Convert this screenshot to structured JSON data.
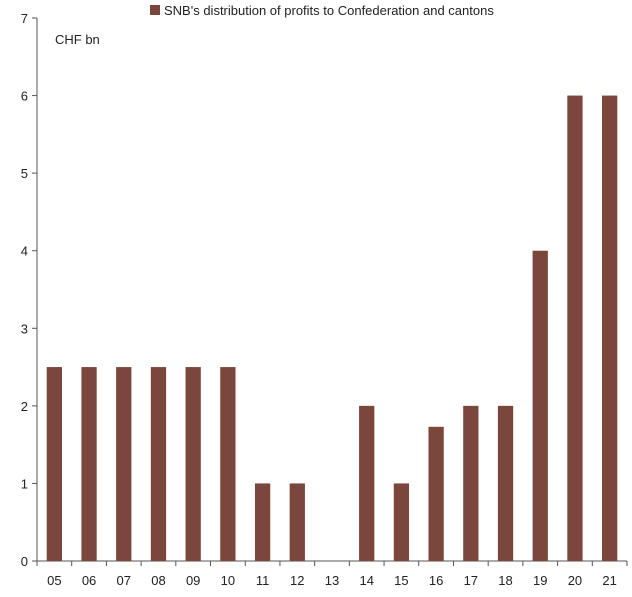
{
  "chart_data": {
    "type": "bar",
    "legend": {
      "label": "SNB's distribution of profits to Confederation and cantons",
      "placement": "top-center"
    },
    "unit_label": "CHF bn",
    "categories": [
      "05",
      "06",
      "07",
      "08",
      "09",
      "10",
      "11",
      "12",
      "13",
      "14",
      "15",
      "16",
      "17",
      "18",
      "19",
      "20",
      "21"
    ],
    "series": [
      {
        "name": "SNB's distribution of profits to Confederation and cantons",
        "values": [
          2.5,
          2.5,
          2.5,
          2.5,
          2.5,
          2.5,
          1,
          1,
          0,
          2,
          1,
          1.73,
          2,
          2,
          4,
          6,
          6
        ]
      }
    ],
    "ylim": [
      0,
      7
    ],
    "yticks": [
      0,
      1,
      2,
      3,
      4,
      5,
      6,
      7
    ],
    "grid": false,
    "colors": {
      "bar": "#7b463b",
      "axis": "#555555"
    }
  }
}
